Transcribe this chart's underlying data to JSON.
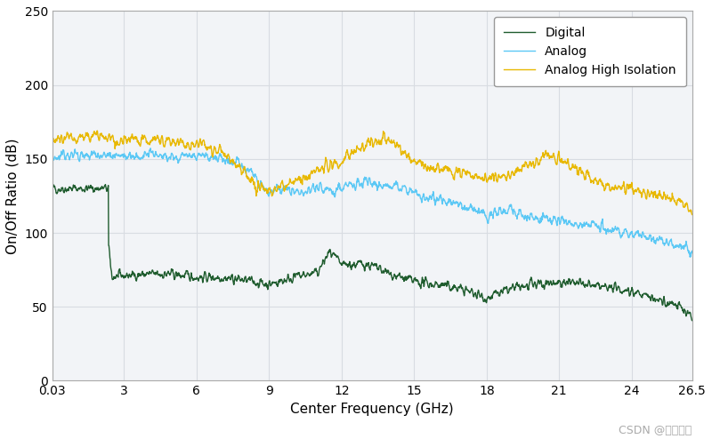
{
  "title": "",
  "xlabel": "Center Frequency (GHz)",
  "ylabel": "On/Off Ratio (dB)",
  "xlim": [
    0.03,
    26.5
  ],
  "ylim": [
    0,
    250
  ],
  "yticks": [
    0,
    50,
    100,
    150,
    200,
    250
  ],
  "xticks": [
    0.03,
    3,
    6,
    9,
    12,
    15,
    18,
    21,
    24,
    26.5
  ],
  "xticklabels": [
    "0.03",
    "3",
    "6",
    "9",
    "12",
    "15",
    "18",
    "21",
    "24",
    "26.5"
  ],
  "legend": [
    "Digital",
    "Analog",
    "Analog High Isolation"
  ],
  "colors": {
    "Digital": "#1f5c2e",
    "Analog": "#5bc8f5",
    "Analog High Isolation": "#e8b800"
  },
  "line_widths": {
    "Digital": 1.0,
    "Analog": 1.0,
    "Analog High Isolation": 1.0
  },
  "background_color": "#f2f4f7",
  "grid_color": "#d8dce2",
  "watermark": "CSDN @东枫科技",
  "watermark_color": "#aaaaaa",
  "seed": 42
}
